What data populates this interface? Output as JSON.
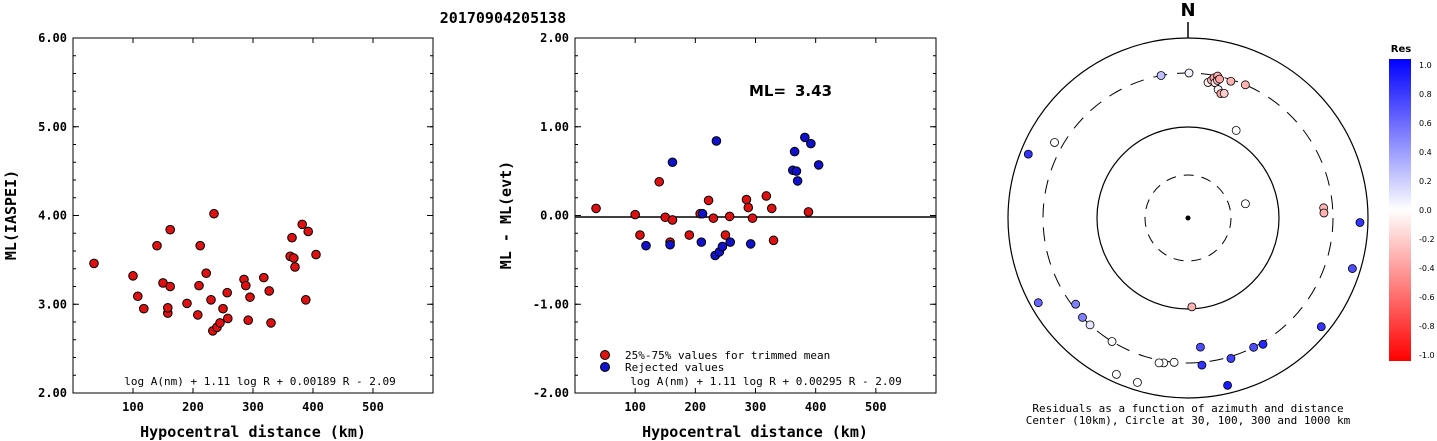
{
  "title": "20170904205138",
  "chart_data": [
    {
      "type": "scatter",
      "xlabel": "Hypocentral distance (km)",
      "ylabel": "ML(IASPEI)",
      "xlim": [
        0,
        600
      ],
      "ylim": [
        2.0,
        6.0
      ],
      "xticks": [
        "100",
        "200",
        "300",
        "400",
        "500"
      ],
      "yticks": [
        "2.00",
        "3.00",
        "4.00",
        "5.00",
        "6.00"
      ],
      "formula": "log A(nm) + 1.11 log R + 0.00189 R - 2.09",
      "color": "#dd1111",
      "points": [
        [
          35,
          3.46
        ],
        [
          100,
          3.32
        ],
        [
          108,
          3.09
        ],
        [
          118,
          2.95
        ],
        [
          140,
          3.66
        ],
        [
          150,
          3.24
        ],
        [
          158,
          2.9
        ],
        [
          158,
          2.96
        ],
        [
          162,
          3.2
        ],
        [
          162,
          3.84
        ],
        [
          190,
          3.01
        ],
        [
          208,
          2.88
        ],
        [
          210,
          3.21
        ],
        [
          212,
          3.66
        ],
        [
          222,
          3.35
        ],
        [
          230,
          3.05
        ],
        [
          233,
          2.7
        ],
        [
          235,
          4.02
        ],
        [
          240,
          2.74
        ],
        [
          245,
          2.79
        ],
        [
          250,
          2.95
        ],
        [
          257,
          3.13
        ],
        [
          258,
          2.84
        ],
        [
          285,
          3.28
        ],
        [
          288,
          3.21
        ],
        [
          292,
          2.82
        ],
        [
          295,
          3.08
        ],
        [
          318,
          3.3
        ],
        [
          327,
          3.15
        ],
        [
          330,
          2.79
        ],
        [
          362,
          3.54
        ],
        [
          365,
          3.75
        ],
        [
          368,
          3.52
        ],
        [
          370,
          3.42
        ],
        [
          382,
          3.9
        ],
        [
          388,
          3.05
        ],
        [
          392,
          3.82
        ],
        [
          405,
          3.56
        ]
      ]
    },
    {
      "type": "scatter",
      "xlabel": "Hypocentral distance (km)",
      "ylabel": "ML - ML(evt)",
      "xlim": [
        0,
        600
      ],
      "ylim": [
        -2.0,
        2.0
      ],
      "xticks": [
        "100",
        "200",
        "300",
        "400",
        "500"
      ],
      "yticks": [
        "-2.00",
        "-1.00",
        "0.00",
        "1.00",
        "2.00"
      ],
      "ml_label": "ML=",
      "ml_value": "3.43",
      "formula": "log A(nm) + 1.11 log R + 0.00295 R - 2.09",
      "legend": [
        {
          "label": "25%-75% values for trimmed mean",
          "color": "#dd1111"
        },
        {
          "label": "Rejected values",
          "color": "#1111cc"
        }
      ],
      "series": [
        {
          "color": "#dd1111",
          "points": [
            [
              35,
              0.08
            ],
            [
              100,
              0.01
            ],
            [
              108,
              -0.22
            ],
            [
              140,
              0.38
            ],
            [
              150,
              -0.02
            ],
            [
              158,
              -0.3
            ],
            [
              162,
              -0.05
            ],
            [
              190,
              -0.22
            ],
            [
              208,
              0.02
            ],
            [
              222,
              0.17
            ],
            [
              230,
              -0.03
            ],
            [
              250,
              -0.22
            ],
            [
              257,
              -0.01
            ],
            [
              285,
              0.18
            ],
            [
              288,
              0.09
            ],
            [
              295,
              -0.03
            ],
            [
              318,
              0.22
            ],
            [
              327,
              0.08
            ],
            [
              330,
              -0.28
            ],
            [
              388,
              0.04
            ]
          ]
        },
        {
          "color": "#1111cc",
          "points": [
            [
              118,
              -0.34
            ],
            [
              158,
              -0.33
            ],
            [
              162,
              0.6
            ],
            [
              210,
              -0.3
            ],
            [
              212,
              0.02
            ],
            [
              233,
              -0.45
            ],
            [
              235,
              0.84
            ],
            [
              240,
              -0.41
            ],
            [
              245,
              -0.35
            ],
            [
              258,
              -0.3
            ],
            [
              292,
              -0.32
            ],
            [
              362,
              0.51
            ],
            [
              365,
              0.72
            ],
            [
              368,
              0.5
            ],
            [
              370,
              0.39
            ],
            [
              382,
              0.88
            ],
            [
              392,
              0.81
            ],
            [
              405,
              0.57
            ]
          ]
        }
      ]
    },
    {
      "type": "polar",
      "north_label": "N",
      "caption_line1": "Residuals as a function of azimuth and distance",
      "caption_line2": "Center (10km), Circle at 30, 100, 300 and 1000 km",
      "colorbar_title": "Res",
      "colorbar_ticks": [
        "1.0",
        "0.8",
        "0.6",
        "0.4",
        "0.2",
        "0.0",
        "-0.2",
        "-0.4",
        "-0.6",
        "-0.8",
        "-1.0"
      ],
      "points": [
        {
          "az": 0.4,
          "dist": 300,
          "res": 0.05
        },
        {
          "az": 349.3,
          "dist": 300,
          "res": 0.25
        },
        {
          "az": 8.4,
          "dist": 255,
          "res": -0.05
        },
        {
          "az": 9.7,
          "dist": 270,
          "res": -0.3
        },
        {
          "az": 10.5,
          "dist": 285,
          "res": -0.35
        },
        {
          "az": 11.3,
          "dist": 260,
          "res": -0.1
        },
        {
          "az": 11.8,
          "dist": 300,
          "res": -0.3
        },
        {
          "az": 12.1,
          "dist": 275,
          "res": -0.25
        },
        {
          "az": 12.8,
          "dist": 285,
          "res": -0.35
        },
        {
          "az": 13.2,
          "dist": 230,
          "res": -0.05
        },
        {
          "az": 14.8,
          "dist": 215,
          "res": -0.35
        },
        {
          "az": 16.2,
          "dist": 220,
          "res": -0.2
        },
        {
          "az": 17.4,
          "dist": 290,
          "res": -0.3
        },
        {
          "az": 23.3,
          "dist": 300,
          "res": -0.3
        },
        {
          "az": 28.8,
          "dist": 120,
          "res": 0.0
        },
        {
          "az": 85.7,
          "dist": 250,
          "res": -0.3
        },
        {
          "az": 87.9,
          "dist": 250,
          "res": -0.3
        },
        {
          "az": 91.5,
          "dist": 1000,
          "res": 0.8
        },
        {
          "az": 76.1,
          "dist": 45,
          "res": 0.0
        },
        {
          "az": 107.1,
          "dist": 1000,
          "res": 0.7
        },
        {
          "az": 129.2,
          "dist": 1000,
          "res": 0.8
        },
        {
          "az": 149.3,
          "dist": 320,
          "res": 0.85
        },
        {
          "az": 153.1,
          "dist": 300,
          "res": 0.7
        },
        {
          "az": 163.0,
          "dist": 320,
          "res": 0.75
        },
        {
          "az": 166.7,
          "dist": 1000,
          "res": 0.9
        },
        {
          "az": 174.5,
          "dist": 220,
          "res": 0.7
        },
        {
          "az": 174.6,
          "dist": 330,
          "res": 0.8
        },
        {
          "az": 177.5,
          "dist": 95,
          "res": -0.3
        },
        {
          "az": 185.5,
          "dist": 300,
          "res": 0.0
        },
        {
          "az": 189.5,
          "dist": 320,
          "res": 0.0
        },
        {
          "az": 191.3,
          "dist": 330,
          "res": 0.0
        },
        {
          "az": 197.1,
          "dist": 1000,
          "res": 0.0
        },
        {
          "az": 204.6,
          "dist": 1000,
          "res": 0.0
        },
        {
          "az": 211.6,
          "dist": 300,
          "res": 0.0
        },
        {
          "az": 222.5,
          "dist": 300,
          "res": 0.1
        },
        {
          "az": 226.7,
          "dist": 300,
          "res": 0.5
        },
        {
          "az": 232.5,
          "dist": 280,
          "res": 0.5
        },
        {
          "az": 240.5,
          "dist": 1000,
          "res": 0.6
        },
        {
          "az": 291.8,
          "dist": 1000,
          "res": 0.8
        },
        {
          "az": 299.5,
          "dist": 400,
          "res": 0.0
        }
      ]
    }
  ]
}
